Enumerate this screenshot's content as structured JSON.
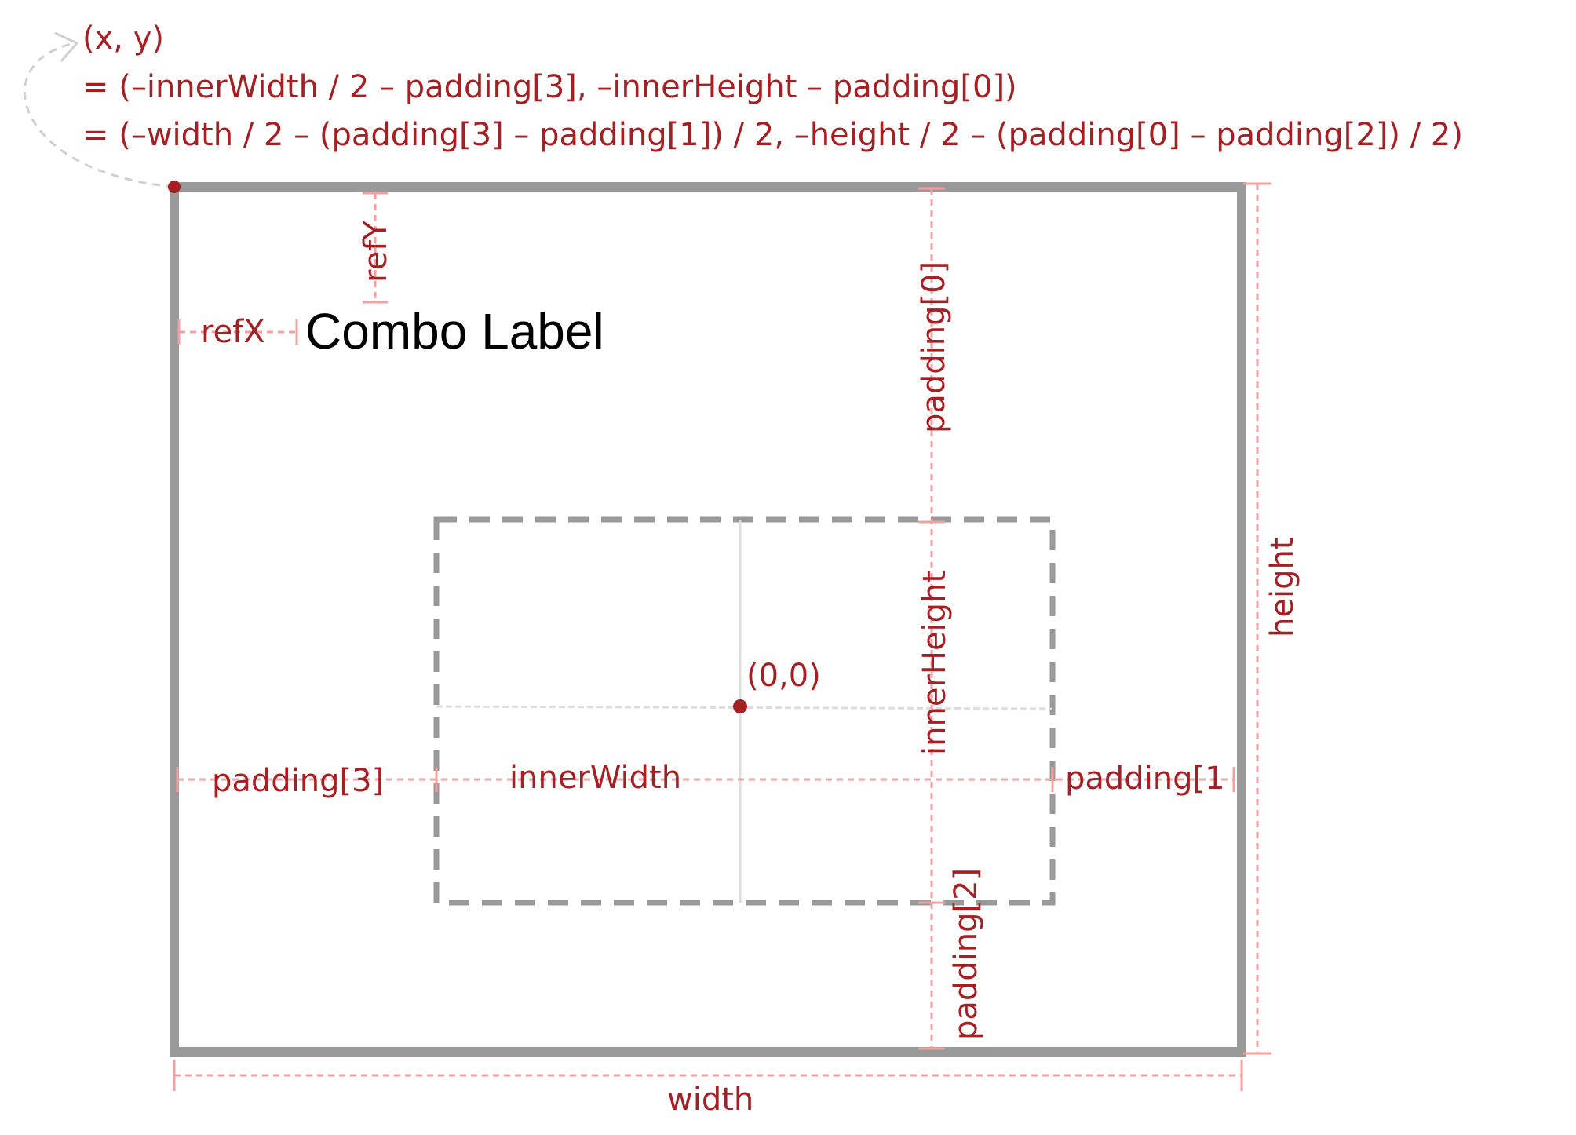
{
  "formula": {
    "line1": "(x, y)",
    "line2": "= (–innerWidth / 2 – padding[3], –innerHeight – padding[0])",
    "line3": "= (–width / 2 – (padding[3] – padding[1]) / 2, –height / 2 – (padding[0] – padding[2]) / 2)"
  },
  "labels": {
    "combo_label": "Combo Label",
    "ref_x": "refX",
    "ref_y": "refY",
    "padding_0": "padding[0]",
    "padding_1": "padding[1",
    "padding_2": "padding[2]",
    "padding_3": "padding[3]",
    "inner_width": "innerWidth",
    "inner_height": "innerHeight",
    "width": "width",
    "height": "height",
    "origin": "(0,0)"
  },
  "colors": {
    "annotation": "#a51f23",
    "dimension_line": "#f4a0a0",
    "box_border": "#999999",
    "crosshair": "#dddddd"
  }
}
